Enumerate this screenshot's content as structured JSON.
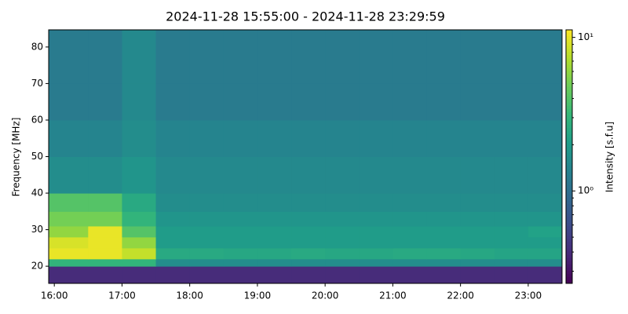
{
  "chart_data": {
    "type": "heatmap",
    "title": "2024-11-28 15:55:00 - 2024-11-28 23:29:59",
    "ylabel": "Frequency [MHz]",
    "colorbar_label": "Intensity [s.f.u]",
    "colormap": "viridis",
    "xlim": [
      15.9167,
      23.5
    ],
    "xticks": [
      {
        "value": 16,
        "label": "16:00"
      },
      {
        "value": 17,
        "label": "17:00"
      },
      {
        "value": 18,
        "label": "18:00"
      },
      {
        "value": 19,
        "label": "19:00"
      },
      {
        "value": 20,
        "label": "20:00"
      },
      {
        "value": 21,
        "label": "21:00"
      },
      {
        "value": 22,
        "label": "22:00"
      },
      {
        "value": 23,
        "label": "23:00"
      }
    ],
    "ylim": [
      15.3,
      84.7
    ],
    "yticks": [
      20,
      30,
      40,
      50,
      60,
      70,
      80
    ],
    "clim": [
      0.25,
      11.2
    ],
    "clog": true,
    "cticks": [
      {
        "value": 1,
        "label": "10⁰"
      },
      {
        "value": 10,
        "label": "10¹"
      }
    ],
    "cminor_ticks": [
      0.3,
      0.4,
      0.5,
      0.6,
      0.7,
      0.8,
      0.9,
      2,
      3,
      4,
      5,
      6,
      7,
      8,
      9
    ],
    "x_edges": [
      15.9167,
      16.5,
      17,
      17.5,
      18,
      18.5,
      19,
      19.5,
      20,
      20.5,
      21,
      21.5,
      22,
      22.5,
      23,
      23.5
    ],
    "y_edges": [
      15.3,
      20,
      22,
      25,
      28,
      31,
      35,
      40,
      50,
      60,
      70,
      84.7
    ],
    "z": [
      [
        0.4,
        0.4,
        0.4,
        0.4,
        0.4,
        0.4,
        0.4,
        0.4,
        0.4,
        0.4,
        0.4,
        0.4,
        0.4,
        0.4,
        0.4
      ],
      [
        3,
        3,
        3,
        1.6,
        1.6,
        1.6,
        1.6,
        1.6,
        1.6,
        1.6,
        1.6,
        1.6,
        1.6,
        1.6,
        1.6
      ],
      [
        10,
        10,
        8,
        2.5,
        2.5,
        2.4,
        2.4,
        2.5,
        2.4,
        2.4,
        2.5,
        2.5,
        2.4,
        2.3,
        2.3
      ],
      [
        9,
        10,
        6,
        2,
        2,
        2,
        2,
        2,
        2,
        2,
        2,
        2,
        2,
        2,
        2
      ],
      [
        6,
        10,
        4,
        2,
        2,
        2,
        2,
        2,
        2,
        2,
        2,
        2,
        2,
        2,
        2.2
      ],
      [
        5,
        5,
        3,
        1.8,
        1.8,
        1.8,
        1.8,
        1.8,
        1.8,
        1.8,
        1.8,
        1.8,
        1.8,
        1.8,
        1.8
      ],
      [
        4,
        4,
        2.5,
        1.6,
        1.6,
        1.6,
        1.6,
        1.6,
        1.6,
        1.6,
        1.6,
        1.6,
        1.6,
        1.6,
        1.6
      ],
      [
        1.6,
        1.6,
        1.8,
        1.5,
        1.5,
        1.5,
        1.5,
        1.5,
        1.5,
        1.5,
        1.5,
        1.5,
        1.5,
        1.5,
        1.5
      ],
      [
        1.4,
        1.4,
        1.6,
        1.4,
        1.4,
        1.4,
        1.4,
        1.4,
        1.4,
        1.4,
        1.4,
        1.4,
        1.4,
        1.4,
        1.4
      ],
      [
        1.2,
        1.2,
        1.5,
        1.2,
        1.2,
        1.2,
        1.2,
        1.2,
        1.2,
        1.2,
        1.2,
        1.2,
        1.2,
        1.2,
        1.2
      ],
      [
        1.2,
        1.2,
        1.5,
        1.2,
        1.2,
        1.2,
        1.2,
        1.2,
        1.2,
        1.2,
        1.2,
        1.2,
        1.2,
        1.2,
        1.2
      ]
    ]
  }
}
